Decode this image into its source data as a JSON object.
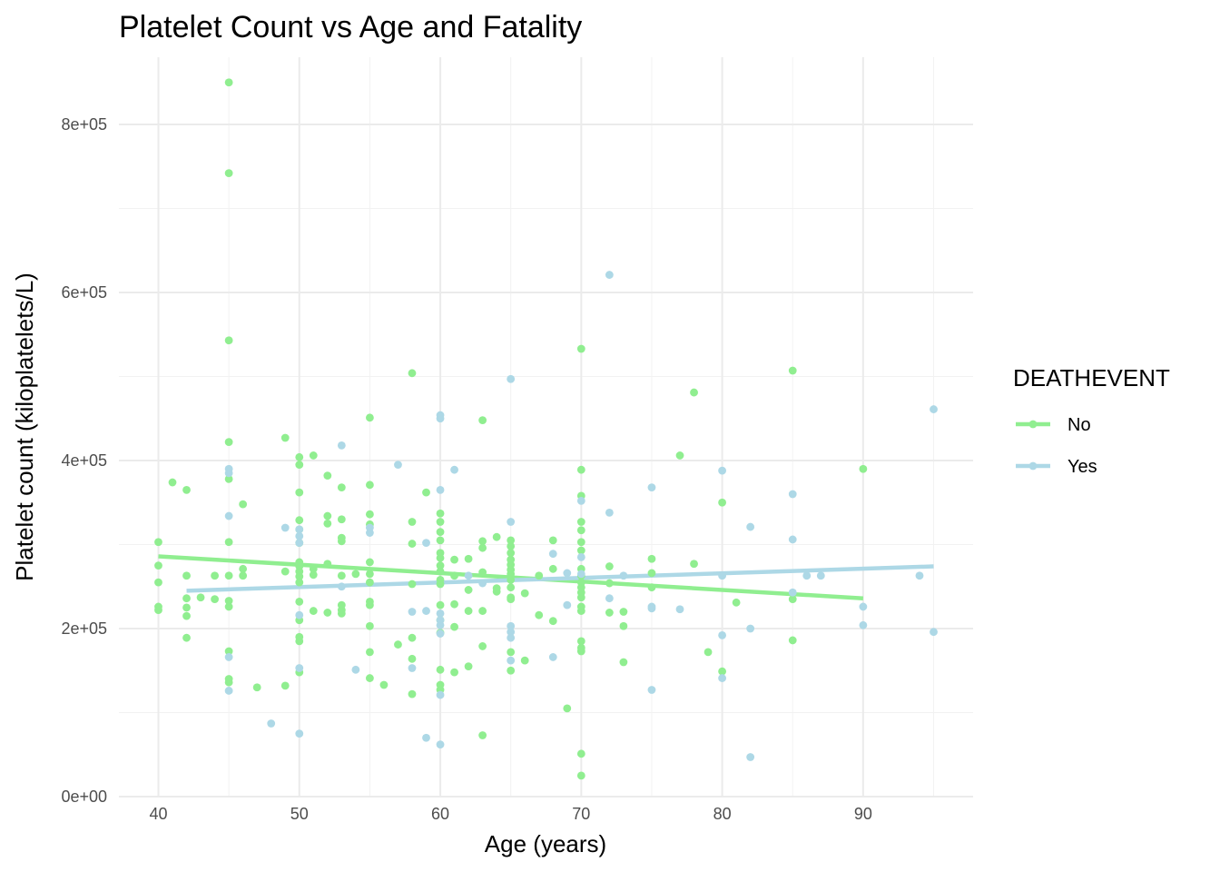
{
  "chart_data": {
    "type": "scatter",
    "title": "Platelet Count vs Age and Fatality",
    "xlabel": "Age (years)",
    "ylabel": "Platelet count (kiloplatelets/L)",
    "xlim": [
      37.2,
      97.8
    ],
    "ylim": [
      0,
      880000
    ],
    "x_ticks": [
      40,
      50,
      60,
      70,
      80,
      90
    ],
    "y_ticks": [
      0,
      200000,
      400000,
      600000,
      800000
    ],
    "x_tick_labels": [
      "40",
      "50",
      "60",
      "70",
      "80",
      "90"
    ],
    "y_tick_labels": [
      "0e+00",
      "2e+05",
      "4e+05",
      "6e+05",
      "8e+05"
    ],
    "grid": true,
    "legend": {
      "title": "DEATHEVENT",
      "position": "right",
      "entries": [
        {
          "label": "No",
          "color": "#90EE90"
        },
        {
          "label": "Yes",
          "color": "#ADD8E6"
        }
      ]
    },
    "series": [
      {
        "name": "No",
        "color": "#90EE90",
        "points": [
          [
            40,
            303000
          ],
          [
            40,
            275000
          ],
          [
            40,
            255000
          ],
          [
            40,
            226000
          ],
          [
            40,
            222000
          ],
          [
            41,
            374000
          ],
          [
            42,
            365000
          ],
          [
            42,
            263000
          ],
          [
            42,
            236000
          ],
          [
            42,
            225000
          ],
          [
            42,
            215000
          ],
          [
            42,
            189000
          ],
          [
            43,
            237000
          ],
          [
            44,
            263000
          ],
          [
            44,
            235000
          ],
          [
            45,
            850000
          ],
          [
            45,
            742000
          ],
          [
            45,
            543000
          ],
          [
            45,
            422000
          ],
          [
            45,
            378000
          ],
          [
            45,
            303000
          ],
          [
            45,
            263000
          ],
          [
            45,
            233000
          ],
          [
            45,
            226000
          ],
          [
            45,
            173000
          ],
          [
            45,
            140000
          ],
          [
            45,
            136000
          ],
          [
            46,
            348000
          ],
          [
            46,
            271000
          ],
          [
            46,
            263000
          ],
          [
            47,
            130000
          ],
          [
            49,
            427000
          ],
          [
            49,
            268000
          ],
          [
            49,
            132000
          ],
          [
            50,
            404000
          ],
          [
            50,
            395000
          ],
          [
            50,
            362000
          ],
          [
            50,
            329000
          ],
          [
            50,
            318000
          ],
          [
            50,
            302000
          ],
          [
            50,
            279000
          ],
          [
            50,
            274000
          ],
          [
            50,
            268000
          ],
          [
            50,
            262000
          ],
          [
            50,
            255000
          ],
          [
            50,
            232000
          ],
          [
            50,
            210000
          ],
          [
            50,
            190000
          ],
          [
            50,
            185000
          ],
          [
            50,
            148000
          ],
          [
            51,
            406000
          ],
          [
            51,
            271000
          ],
          [
            51,
            264000
          ],
          [
            51,
            221000
          ],
          [
            52,
            382000
          ],
          [
            52,
            334000
          ],
          [
            52,
            325000
          ],
          [
            52,
            277000
          ],
          [
            52,
            219000
          ],
          [
            53,
            368000
          ],
          [
            53,
            330000
          ],
          [
            53,
            308000
          ],
          [
            53,
            304000
          ],
          [
            53,
            263000
          ],
          [
            53,
            228000
          ],
          [
            53,
            222000
          ],
          [
            53,
            218000
          ],
          [
            54,
            265000
          ],
          [
            55,
            451000
          ],
          [
            55,
            371000
          ],
          [
            55,
            336000
          ],
          [
            55,
            324000
          ],
          [
            55,
            279000
          ],
          [
            55,
            265000
          ],
          [
            55,
            255000
          ],
          [
            55,
            232000
          ],
          [
            55,
            228000
          ],
          [
            55,
            203000
          ],
          [
            55,
            172000
          ],
          [
            55,
            141000
          ],
          [
            56,
            133000
          ],
          [
            57,
            181000
          ],
          [
            58,
            504000
          ],
          [
            58,
            327000
          ],
          [
            58,
            301000
          ],
          [
            58,
            253000
          ],
          [
            58,
            189000
          ],
          [
            58,
            164000
          ],
          [
            58,
            122000
          ],
          [
            59,
            362000
          ],
          [
            60,
            337000
          ],
          [
            60,
            327000
          ],
          [
            60,
            315000
          ],
          [
            60,
            305000
          ],
          [
            60,
            290000
          ],
          [
            60,
            284000
          ],
          [
            60,
            275000
          ],
          [
            60,
            268000
          ],
          [
            60,
            258000
          ],
          [
            60,
            253000
          ],
          [
            60,
            228000
          ],
          [
            60,
            210000
          ],
          [
            60,
            195000
          ],
          [
            60,
            151000
          ],
          [
            60,
            133000
          ],
          [
            60,
            127000
          ],
          [
            61,
            282000
          ],
          [
            61,
            263000
          ],
          [
            61,
            229000
          ],
          [
            61,
            202000
          ],
          [
            61,
            148000
          ],
          [
            62,
            283000
          ],
          [
            62,
            246000
          ],
          [
            62,
            221000
          ],
          [
            62,
            155000
          ],
          [
            63,
            448000
          ],
          [
            63,
            304000
          ],
          [
            63,
            296000
          ],
          [
            63,
            267000
          ],
          [
            63,
            221000
          ],
          [
            63,
            179000
          ],
          [
            63,
            73000
          ],
          [
            64,
            309000
          ],
          [
            64,
            248000
          ],
          [
            64,
            244000
          ],
          [
            65,
            305000
          ],
          [
            65,
            298000
          ],
          [
            65,
            290000
          ],
          [
            65,
            282000
          ],
          [
            65,
            276000
          ],
          [
            65,
            270000
          ],
          [
            65,
            265000
          ],
          [
            65,
            258000
          ],
          [
            65,
            249000
          ],
          [
            65,
            237000
          ],
          [
            65,
            235000
          ],
          [
            65,
            172000
          ],
          [
            65,
            150000
          ],
          [
            66,
            242000
          ],
          [
            66,
            162000
          ],
          [
            67,
            263000
          ],
          [
            67,
            216000
          ],
          [
            68,
            305000
          ],
          [
            68,
            271000
          ],
          [
            68,
            209000
          ],
          [
            69,
            105000
          ],
          [
            70,
            533000
          ],
          [
            70,
            389000
          ],
          [
            70,
            358000
          ],
          [
            70,
            327000
          ],
          [
            70,
            317000
          ],
          [
            70,
            303000
          ],
          [
            70,
            293000
          ],
          [
            70,
            271000
          ],
          [
            70,
            263000
          ],
          [
            70,
            255000
          ],
          [
            70,
            249000
          ],
          [
            70,
            243000
          ],
          [
            70,
            237000
          ],
          [
            70,
            226000
          ],
          [
            70,
            221000
          ],
          [
            70,
            185000
          ],
          [
            70,
            177000
          ],
          [
            70,
            173000
          ],
          [
            70,
            51000
          ],
          [
            70,
            25000
          ],
          [
            72,
            274000
          ],
          [
            72,
            219000
          ],
          [
            72,
            254000
          ],
          [
            73,
            220000
          ],
          [
            73,
            203000
          ],
          [
            73,
            160000
          ],
          [
            75,
            283000
          ],
          [
            75,
            266000
          ],
          [
            75,
            249000
          ],
          [
            77,
            406000
          ],
          [
            78,
            481000
          ],
          [
            78,
            277000
          ],
          [
            79,
            172000
          ],
          [
            80,
            350000
          ],
          [
            80,
            149000
          ],
          [
            81,
            231000
          ],
          [
            85,
            507000
          ],
          [
            85,
            235000
          ],
          [
            85,
            186000
          ],
          [
            90,
            390000
          ]
        ]
      },
      {
        "name": "Yes",
        "color": "#ADD8E6",
        "points": [
          [
            45,
            390000
          ],
          [
            45,
            385000
          ],
          [
            45,
            334000
          ],
          [
            45,
            166000
          ],
          [
            45,
            126000
          ],
          [
            48,
            87000
          ],
          [
            49,
            320000
          ],
          [
            50,
            318000
          ],
          [
            50,
            310000
          ],
          [
            50,
            302000
          ],
          [
            50,
            216000
          ],
          [
            50,
            153000
          ],
          [
            50,
            75000
          ],
          [
            53,
            418000
          ],
          [
            53,
            250000
          ],
          [
            54,
            151000
          ],
          [
            55,
            320000
          ],
          [
            55,
            314000
          ],
          [
            57,
            395000
          ],
          [
            58,
            220000
          ],
          [
            58,
            153000
          ],
          [
            59,
            302000
          ],
          [
            59,
            221000
          ],
          [
            59,
            70000
          ],
          [
            60,
            454000
          ],
          [
            60,
            450000
          ],
          [
            60,
            365000
          ],
          [
            60,
            218000
          ],
          [
            60,
            210000
          ],
          [
            60,
            204000
          ],
          [
            60,
            194000
          ],
          [
            60,
            121000
          ],
          [
            60,
            62000
          ],
          [
            61,
            389000
          ],
          [
            62,
            263000
          ],
          [
            63,
            254000
          ],
          [
            65,
            497000
          ],
          [
            65,
            327000
          ],
          [
            65,
            203000
          ],
          [
            65,
            196000
          ],
          [
            65,
            189000
          ],
          [
            65,
            162000
          ],
          [
            68,
            289000
          ],
          [
            68,
            166000
          ],
          [
            69,
            266000
          ],
          [
            69,
            228000
          ],
          [
            70,
            352000
          ],
          [
            70,
            285000
          ],
          [
            70,
            265000
          ],
          [
            72,
            621000
          ],
          [
            72,
            338000
          ],
          [
            72,
            236000
          ],
          [
            73,
            263000
          ],
          [
            75,
            368000
          ],
          [
            75,
            226000
          ],
          [
            75,
            224000
          ],
          [
            75,
            127000
          ],
          [
            77,
            223000
          ],
          [
            80,
            388000
          ],
          [
            80,
            263000
          ],
          [
            80,
            192000
          ],
          [
            80,
            141000
          ],
          [
            82,
            321000
          ],
          [
            82,
            200000
          ],
          [
            82,
            47000
          ],
          [
            85,
            360000
          ],
          [
            85,
            306000
          ],
          [
            85,
            243000
          ],
          [
            86,
            263000
          ],
          [
            87,
            263000
          ],
          [
            90,
            226000
          ],
          [
            90,
            204000
          ],
          [
            94,
            263000
          ],
          [
            95,
            461000
          ],
          [
            95,
            196000
          ]
        ]
      }
    ],
    "trend_lines": [
      {
        "name": "No",
        "color": "#90EE90",
        "x": [
          40,
          90
        ],
        "y": [
          286000,
          236000
        ]
      },
      {
        "name": "Yes",
        "color": "#ADD8E6",
        "x": [
          42,
          95
        ],
        "y": [
          245000,
          274000
        ]
      }
    ]
  }
}
